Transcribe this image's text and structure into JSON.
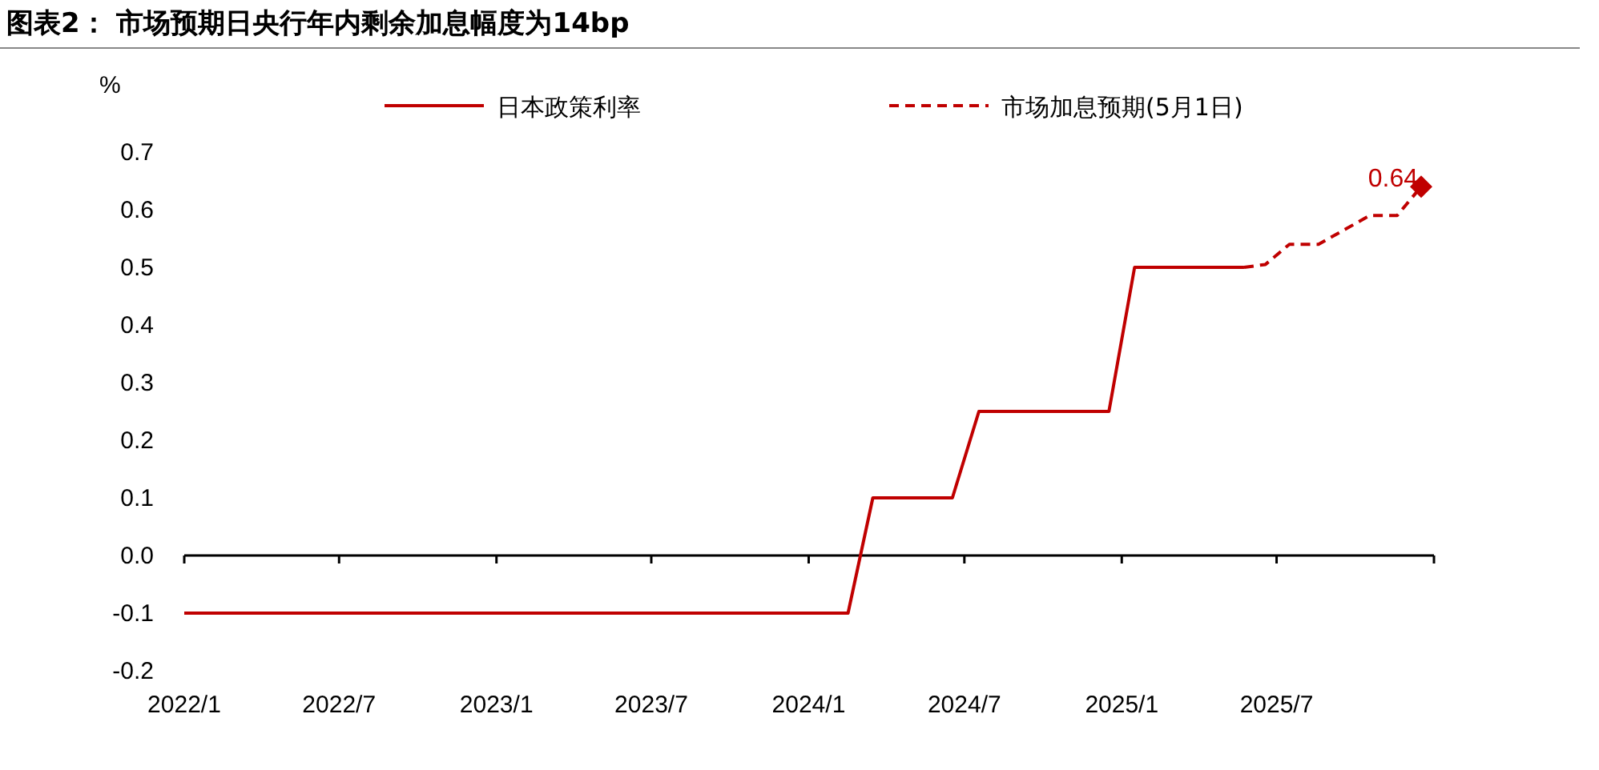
{
  "chart_data": {
    "type": "line",
    "title": "图表2： 市场预期日央行年内剩余加息幅度为14bp",
    "ylabel": "%",
    "xlim": [
      "2022-01-01",
      "2026-01-01"
    ],
    "xticks": [
      {
        "value": "2022-01",
        "label": "2022/1"
      },
      {
        "value": "2022-07",
        "label": "2022/7"
      },
      {
        "value": "2023-01",
        "label": "2023/1"
      },
      {
        "value": "2023-07",
        "label": "2023/7"
      },
      {
        "value": "2024-01",
        "label": "2024/1"
      },
      {
        "value": "2024-07",
        "label": "2024/7"
      },
      {
        "value": "2025-01",
        "label": "2025/1"
      },
      {
        "value": "2025-07",
        "label": "2025/7"
      },
      {
        "value": "2026-01",
        "label": null
      }
    ],
    "ylim": [
      -0.2,
      0.7
    ],
    "yticks": [
      {
        "value": -0.2,
        "label": "-0.2"
      },
      {
        "value": -0.1,
        "label": "-0.1"
      },
      {
        "value": 0,
        "label": "0.0"
      },
      {
        "value": 0.1,
        "label": "0.1"
      },
      {
        "value": 0.2,
        "label": "0.2"
      },
      {
        "value": 0.3,
        "label": "0.3"
      },
      {
        "value": 0.4,
        "label": "0.4"
      },
      {
        "value": 0.5,
        "label": "0.5"
      },
      {
        "value": 0.6,
        "label": "0.6"
      },
      {
        "value": 0.7,
        "label": "0.7"
      }
    ],
    "legend": "top",
    "series": [
      {
        "name": "日本政策利率",
        "color": "#c00000",
        "line_style": "solid",
        "marker": "none",
        "x": [
          "2022-01-01",
          "2024-02-16",
          "2024-03-16",
          "2024-06-17",
          "2024-07-18",
          "2024-12-17",
          "2025-01-16",
          "2025-05-24"
        ],
        "values": [
          -0.1,
          -0.1,
          0.1,
          0.1,
          0.25,
          0.25,
          0.5,
          0.5
        ]
      },
      {
        "name": "市场加息预期(5月1日)",
        "color": "#c00000",
        "line_style": "dashed",
        "marker": "none",
        "x": [
          "2025-05-24",
          "2025-06-18",
          "2025-07-16",
          "2025-08-19",
          "2025-10-18",
          "2025-11-19",
          "2025-12-17"
        ],
        "values": [
          0.5,
          0.505,
          0.54,
          0.54,
          0.59,
          0.59,
          0.64
        ]
      },
      {
        "type": "scatter",
        "color": "#c00000",
        "marker": "diamond",
        "x": [
          "2025-12-17"
        ],
        "values": [
          0.64
        ],
        "value_labels": [
          "0.64"
        ]
      }
    ]
  }
}
